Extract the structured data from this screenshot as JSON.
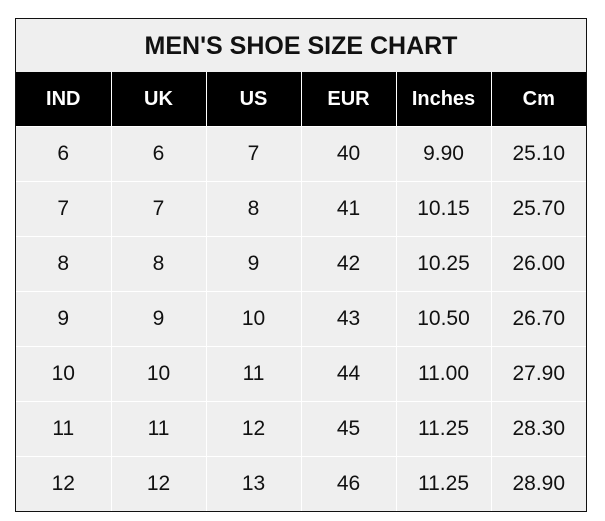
{
  "title": "MEN'S SHOE SIZE CHART",
  "columns": [
    "IND",
    "UK",
    "US",
    "EUR",
    "Inches",
    "Cm"
  ],
  "rows": [
    [
      "6",
      "6",
      "7",
      "40",
      "9.90",
      "25.10"
    ],
    [
      "7",
      "7",
      "8",
      "41",
      "10.15",
      "25.70"
    ],
    [
      "8",
      "8",
      "9",
      "42",
      "10.25",
      "26.00"
    ],
    [
      "9",
      "9",
      "10",
      "43",
      "10.50",
      "26.70"
    ],
    [
      "10",
      "10",
      "11",
      "44",
      "11.00",
      "27.90"
    ],
    [
      "11",
      "11",
      "12",
      "45",
      "11.25",
      "28.30"
    ],
    [
      "12",
      "12",
      "13",
      "46",
      "11.25",
      "28.90"
    ]
  ]
}
